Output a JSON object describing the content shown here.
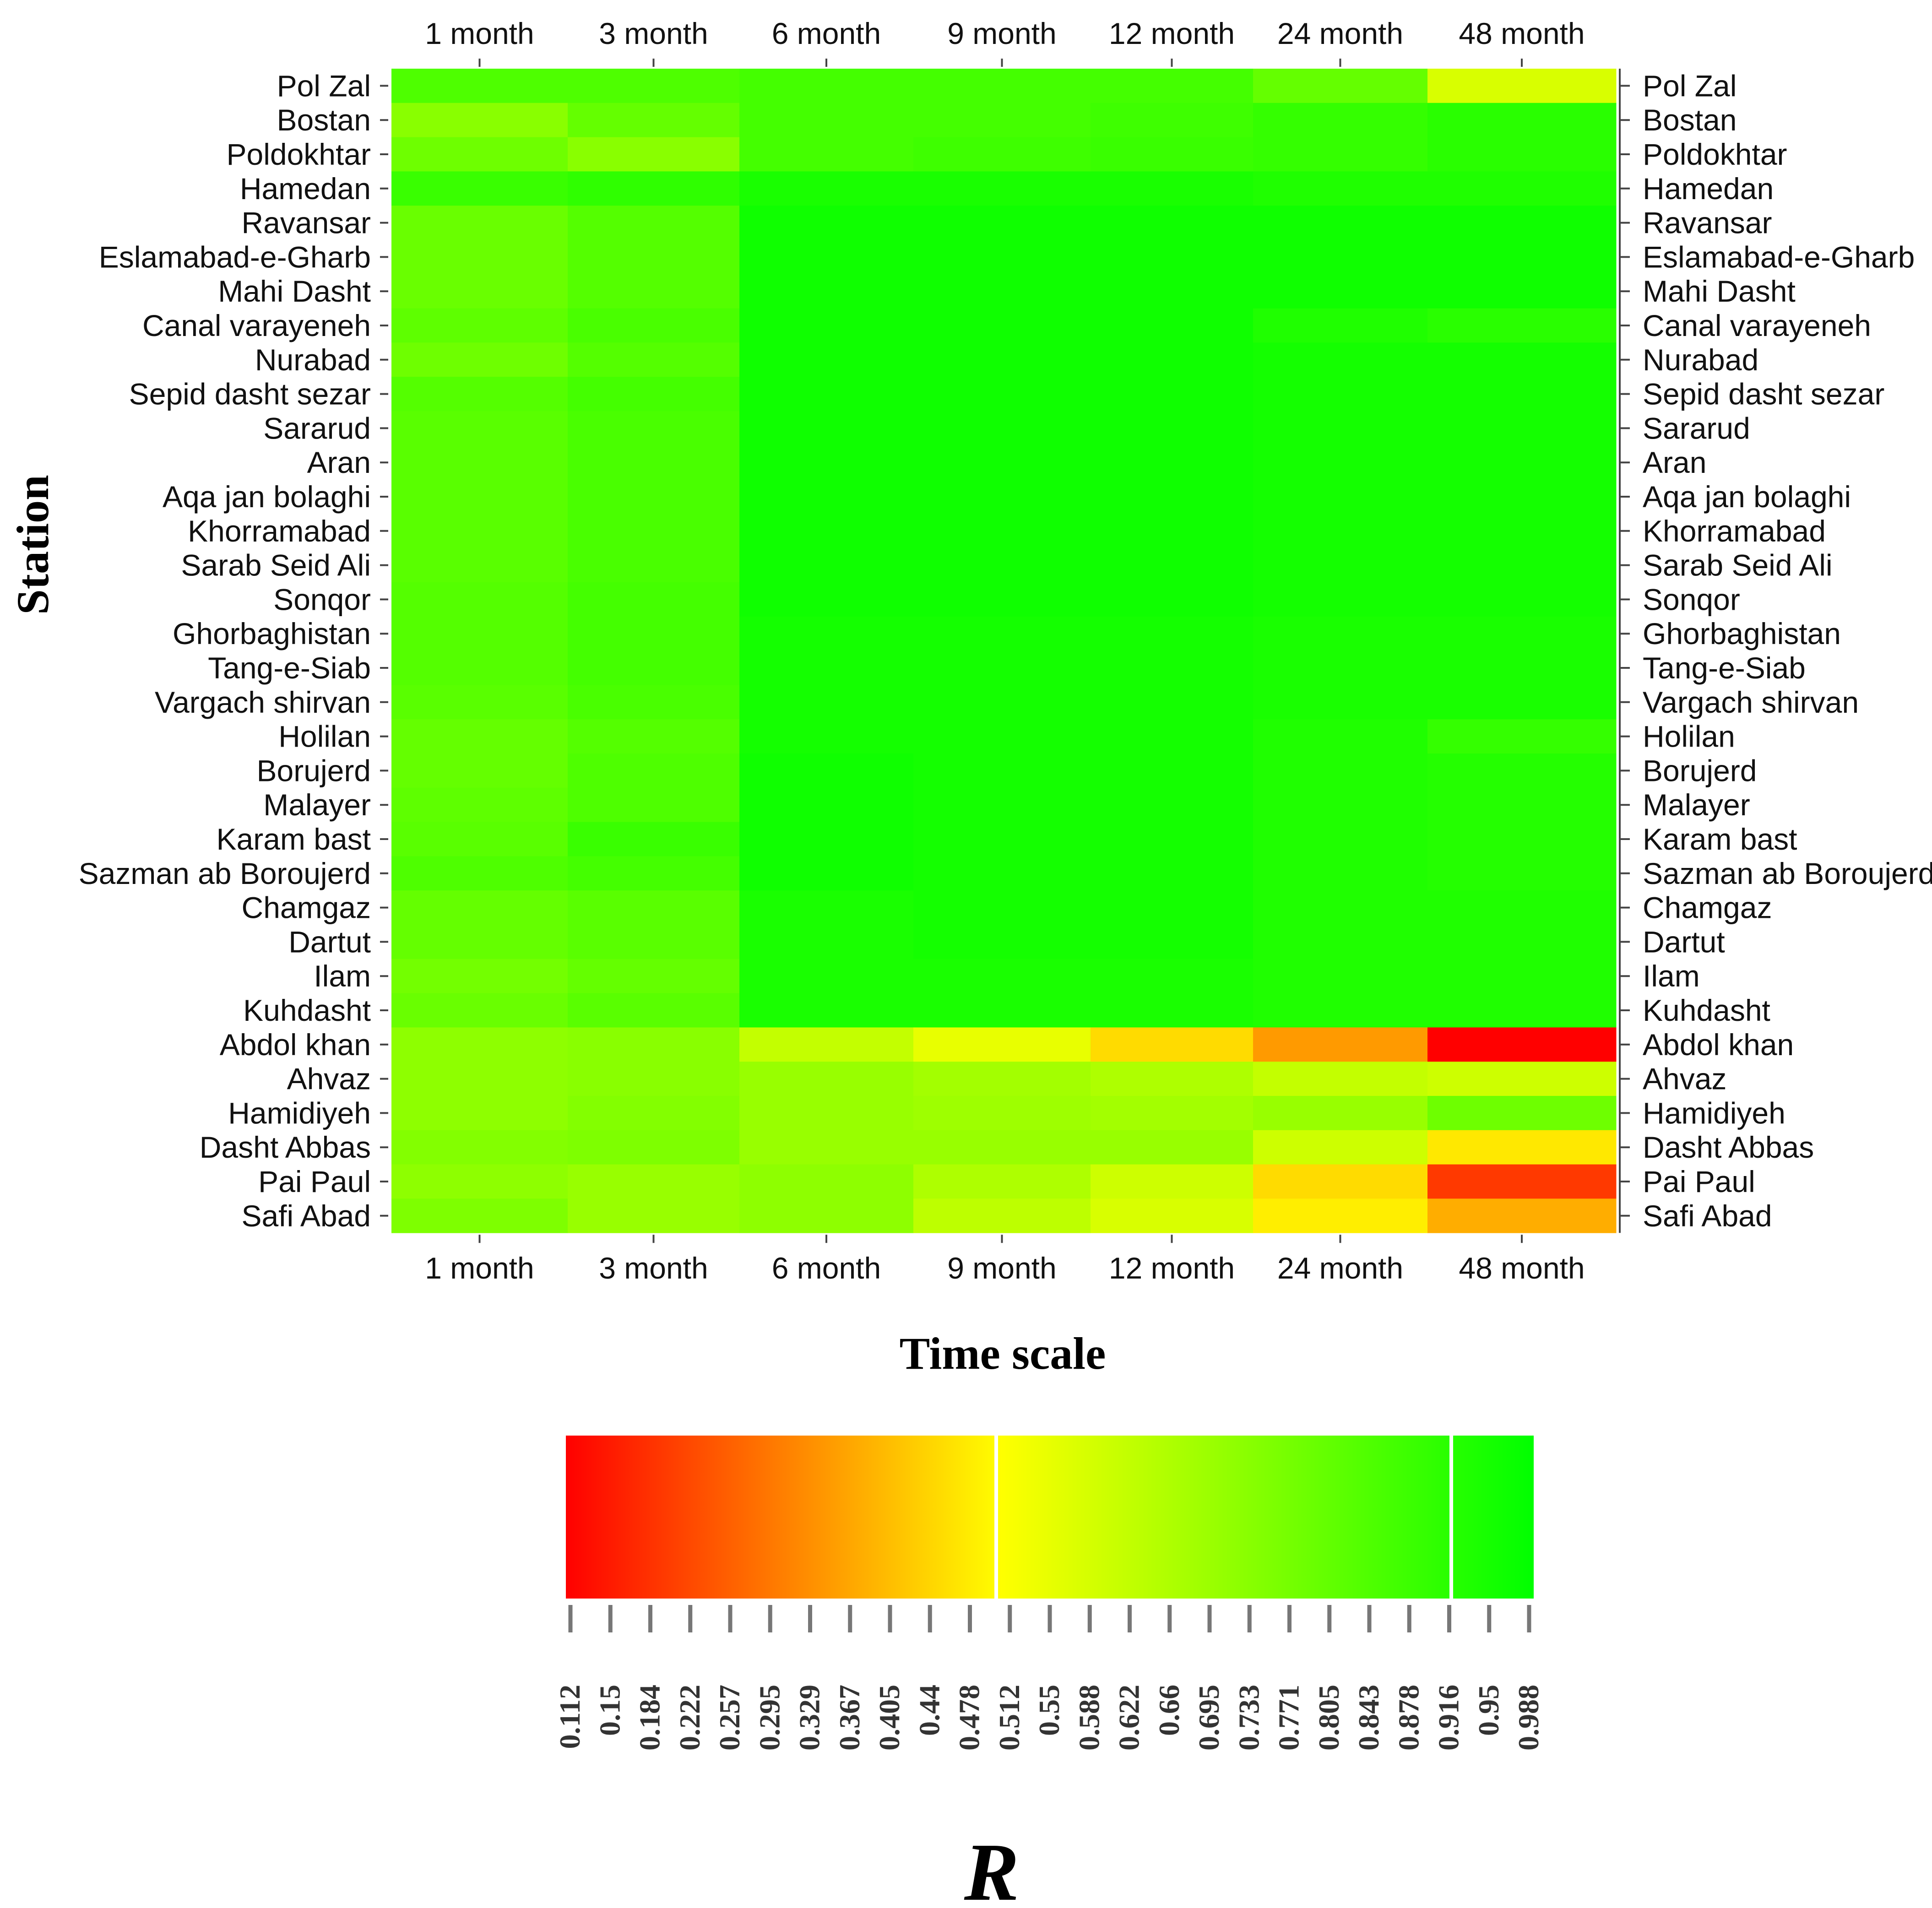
{
  "chart_data": {
    "type": "heatmap",
    "xlabel": "Time scale",
    "ylabel": "Station",
    "colorbar_label": "R",
    "columns": [
      "1 month",
      "3 month",
      "6 month",
      "9 month",
      "12 month",
      "24 month",
      "48 month"
    ],
    "rows": [
      "Pol Zal",
      "Bostan",
      "Poldokhtar",
      "Hamedan",
      "Ravansar",
      "Eslamabad-e-Gharb",
      "Mahi Dasht",
      "Canal varayeneh",
      "Nurabad",
      "Sepid dasht sezar",
      "Sararud",
      "Aran",
      "Aqa jan bolaghi",
      "Khorramabad",
      "Sarab Seid Ali",
      "Sonqor",
      "Ghorbaghistan",
      "Tang-e-Siab",
      "Vargach shirvan",
      "Holilan",
      "Borujerd",
      "Malayer",
      "Karam bast",
      "Sazman ab Boroujerd",
      "Chamgaz",
      "Dartut",
      "Ilam",
      "Kuhdasht",
      "Abdol khan",
      "Ahvaz",
      "Hamidiyeh",
      "Dasht Abbas ",
      "Pai Paul",
      "Safi Abad"
    ],
    "values": [
      [
        0.84,
        0.84,
        0.86,
        0.86,
        0.86,
        0.8,
        0.58
      ],
      [
        0.73,
        0.8,
        0.86,
        0.86,
        0.87,
        0.89,
        0.91
      ],
      [
        0.78,
        0.73,
        0.86,
        0.87,
        0.88,
        0.89,
        0.91
      ],
      [
        0.88,
        0.9,
        0.94,
        0.94,
        0.94,
        0.93,
        0.93
      ],
      [
        0.79,
        0.83,
        0.96,
        0.96,
        0.96,
        0.96,
        0.96
      ],
      [
        0.79,
        0.83,
        0.96,
        0.96,
        0.96,
        0.96,
        0.96
      ],
      [
        0.79,
        0.83,
        0.96,
        0.96,
        0.96,
        0.96,
        0.96
      ],
      [
        0.81,
        0.85,
        0.96,
        0.96,
        0.96,
        0.93,
        0.91
      ],
      [
        0.78,
        0.83,
        0.96,
        0.96,
        0.96,
        0.95,
        0.95
      ],
      [
        0.83,
        0.86,
        0.96,
        0.96,
        0.96,
        0.95,
        0.95
      ],
      [
        0.82,
        0.85,
        0.96,
        0.96,
        0.96,
        0.95,
        0.95
      ],
      [
        0.82,
        0.85,
        0.96,
        0.96,
        0.96,
        0.95,
        0.95
      ],
      [
        0.82,
        0.85,
        0.96,
        0.96,
        0.96,
        0.95,
        0.95
      ],
      [
        0.82,
        0.85,
        0.96,
        0.96,
        0.96,
        0.95,
        0.95
      ],
      [
        0.82,
        0.85,
        0.96,
        0.96,
        0.96,
        0.95,
        0.95
      ],
      [
        0.83,
        0.86,
        0.96,
        0.96,
        0.96,
        0.95,
        0.95
      ],
      [
        0.83,
        0.86,
        0.95,
        0.95,
        0.95,
        0.94,
        0.94
      ],
      [
        0.83,
        0.86,
        0.95,
        0.95,
        0.95,
        0.94,
        0.94
      ],
      [
        0.82,
        0.85,
        0.95,
        0.95,
        0.95,
        0.94,
        0.94
      ],
      [
        0.8,
        0.83,
        0.95,
        0.95,
        0.95,
        0.93,
        0.89
      ],
      [
        0.8,
        0.84,
        0.96,
        0.95,
        0.95,
        0.93,
        0.92
      ],
      [
        0.81,
        0.84,
        0.96,
        0.95,
        0.95,
        0.93,
        0.92
      ],
      [
        0.82,
        0.88,
        0.96,
        0.95,
        0.95,
        0.93,
        0.92
      ],
      [
        0.84,
        0.86,
        0.96,
        0.95,
        0.95,
        0.93,
        0.92
      ],
      [
        0.8,
        0.82,
        0.94,
        0.95,
        0.95,
        0.93,
        0.93
      ],
      [
        0.8,
        0.82,
        0.94,
        0.95,
        0.95,
        0.93,
        0.93
      ],
      [
        0.77,
        0.8,
        0.94,
        0.94,
        0.94,
        0.93,
        0.93
      ],
      [
        0.79,
        0.82,
        0.94,
        0.94,
        0.94,
        0.93,
        0.93
      ],
      [
        0.72,
        0.73,
        0.62,
        0.55,
        0.45,
        0.35,
        0.11
      ],
      [
        0.72,
        0.73,
        0.7,
        0.68,
        0.66,
        0.62,
        0.6
      ],
      [
        0.72,
        0.74,
        0.7,
        0.69,
        0.68,
        0.7,
        0.78
      ],
      [
        0.74,
        0.75,
        0.7,
        0.7,
        0.7,
        0.6,
        0.47
      ],
      [
        0.72,
        0.7,
        0.72,
        0.66,
        0.6,
        0.45,
        0.2
      ],
      [
        0.75,
        0.7,
        0.72,
        0.63,
        0.58,
        0.48,
        0.38
      ]
    ],
    "colorbar_ticks": [
      "0.112",
      "0.15",
      "0.184",
      "0.222",
      "0.257",
      "0.295",
      "0.329",
      "0.367",
      "0.405",
      "0.44",
      "0.478",
      "0.512",
      "0.55",
      "0.588",
      "0.622",
      "0.66",
      "0.695",
      "0.733",
      "0.771",
      "0.805",
      "0.843",
      "0.878",
      "0.916",
      "0.95",
      "0.988"
    ],
    "colorbar_range": [
      0.112,
      0.988
    ],
    "colors": {
      "low": "#ff0000",
      "mid": "#ffff00",
      "high": "#00ff00"
    }
  }
}
